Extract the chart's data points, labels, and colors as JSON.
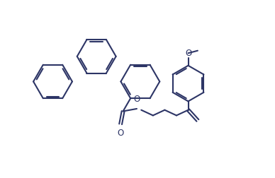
{
  "bg_color": "#ffffff",
  "line_color": "#2d3566",
  "line_width": 1.5,
  "fig_width": 3.88,
  "fig_height": 2.52,
  "dpi": 100,
  "xlim": [
    0,
    11
  ],
  "ylim": [
    0,
    7
  ]
}
